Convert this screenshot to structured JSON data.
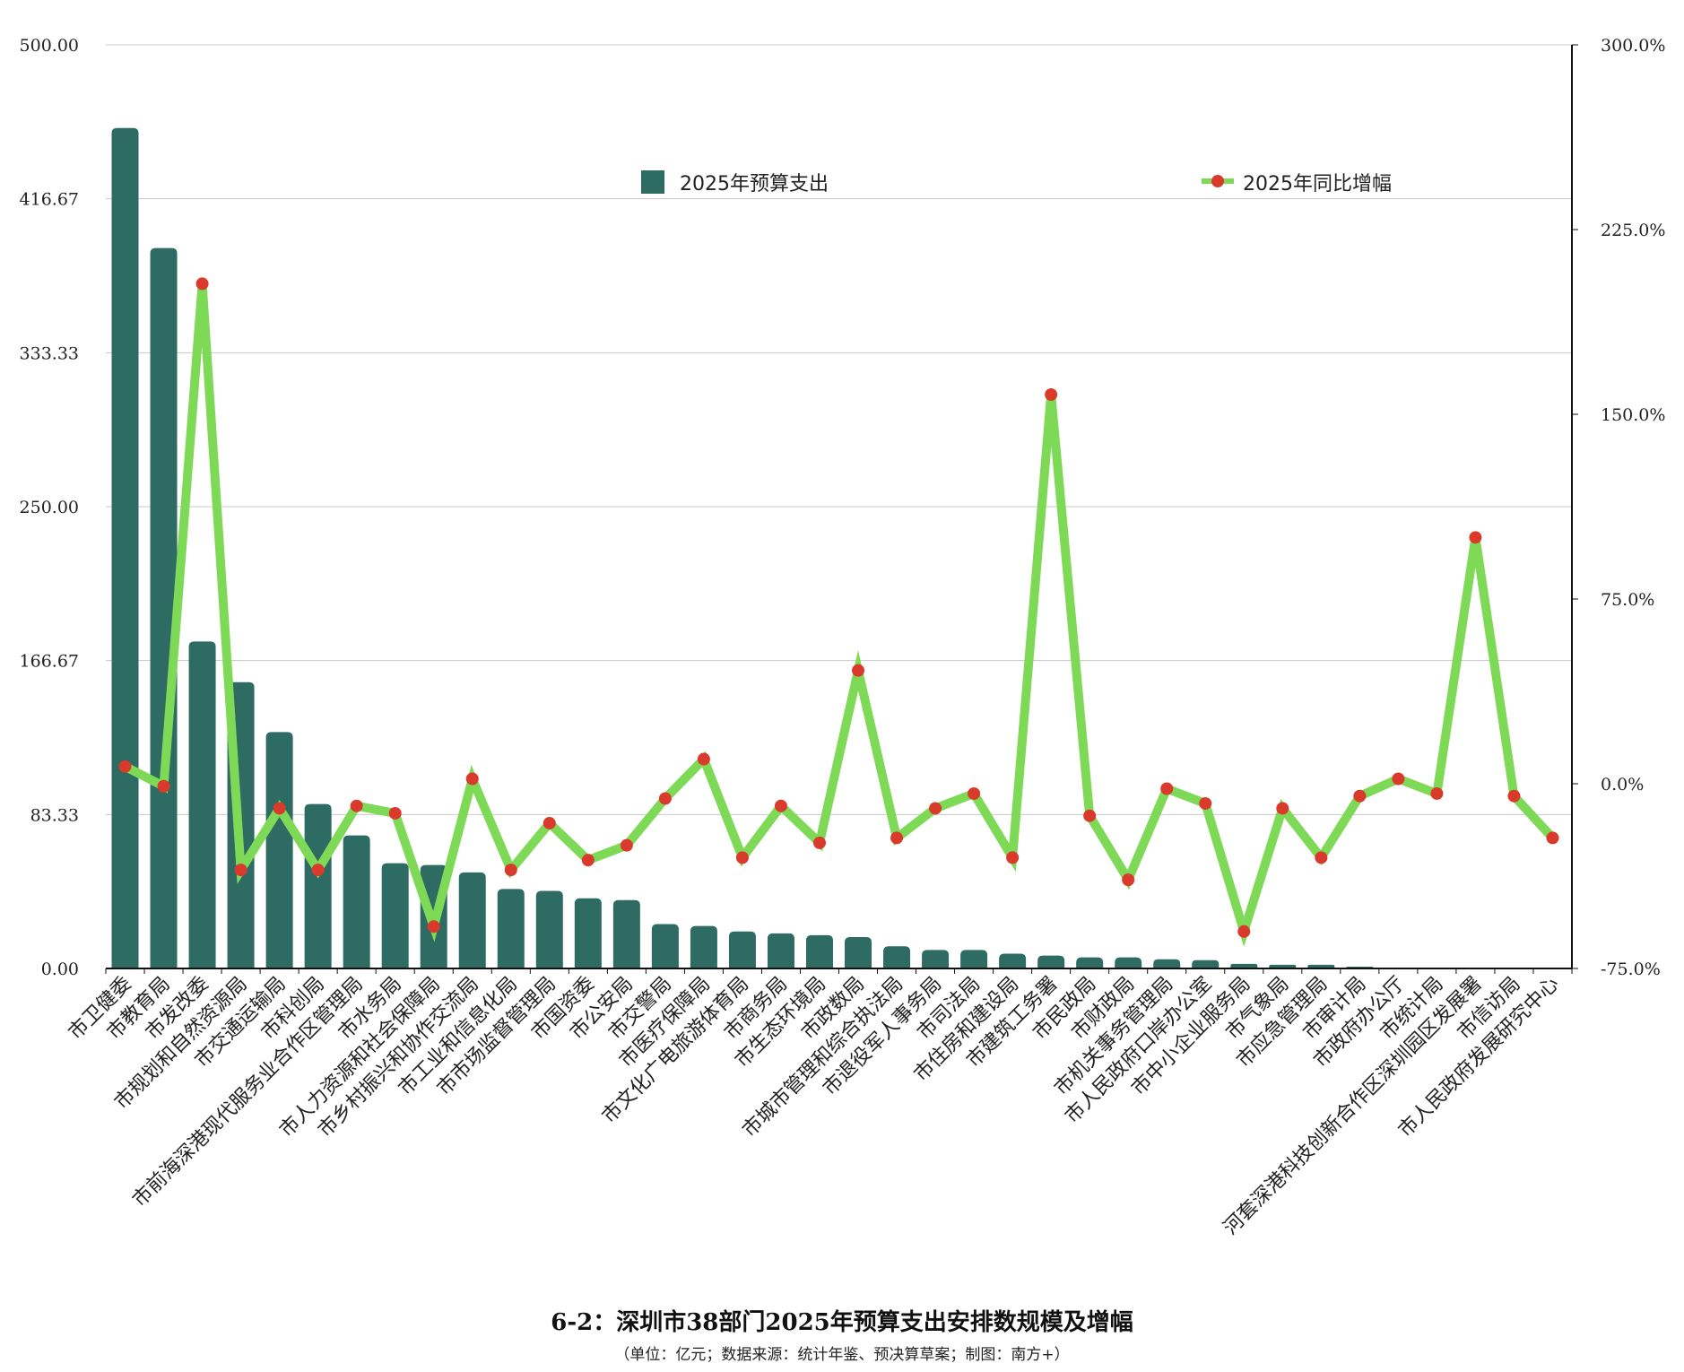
{
  "chart_data": {
    "type": "bar",
    "title": "6-2：深圳市38部门2025年预算支出安排数规模及增幅",
    "subtitle": "（单位：亿元；数据来源：统计年鉴、预决算草案；制图：南方+）",
    "categories": [
      "市卫健委",
      "市教育局",
      "市发改委",
      "市规划和自然资源局",
      "市交通运输局",
      "市科创局",
      "市前海深港现代服务业合作区管理局",
      "市水务局",
      "市人力资源和社会保障局",
      "市乡村振兴和协作交流局",
      "市工业和信息化局",
      "市市场监督管理局",
      "市国资委",
      "市公安局",
      "市交警局",
      "市医疗保障局",
      "市文化广电旅游体育局",
      "市商务局",
      "市生态环境局",
      "市政数局",
      "市城市管理和综合执法局",
      "市退役军人事务局",
      "市司法局",
      "市住房和建设局",
      "市建筑工务署",
      "市民政局",
      "市财政局",
      "市机关事务管理局",
      "市人民政府口岸办公室",
      "市中小企业服务局",
      "市气象局",
      "市应急管理局",
      "市审计局",
      "市政府办公厅",
      "市统计局",
      "河套深港科技创新合作区深圳园区发展署",
      "市信访局",
      "市人民政府发展研究中心"
    ],
    "series": [
      {
        "name": "2025年预算支出",
        "type": "bar",
        "axis": "left",
        "color": "#2e6b63",
        "values": [
          455,
          390,
          177,
          155,
          128,
          89,
          72,
          57,
          56,
          52,
          43,
          42,
          38,
          37,
          24,
          23,
          20,
          19,
          18,
          17,
          12,
          10,
          10,
          8,
          7,
          6,
          6,
          5,
          4.5,
          2.5,
          2,
          2,
          1,
          0,
          0,
          0,
          0,
          0
        ]
      },
      {
        "name": "2025年同比增幅",
        "type": "line",
        "axis": "right",
        "color": "#7ed957",
        "marker_color": "#d93a2b",
        "values": [
          7,
          -1,
          203,
          -35,
          -10,
          -35,
          -9,
          -12,
          -58,
          2,
          -35,
          -16,
          -31,
          -25,
          -6,
          10,
          -30,
          -9,
          -24,
          46,
          -22,
          -10,
          -4,
          -30,
          158,
          -13,
          -39,
          -2,
          -8,
          -60,
          -10,
          -30,
          -5,
          2,
          -4,
          100,
          -5,
          -22
        ]
      }
    ],
    "y_left": {
      "min": 0,
      "max": 500,
      "ticks": [
        "0.00",
        "83.33",
        "166.67",
        "250.00",
        "333.33",
        "416.67",
        "500.00"
      ]
    },
    "y_right": {
      "min": -75,
      "max": 300,
      "ticks": [
        "-75.0%",
        "0.0%",
        "75.0%",
        "150.0%",
        "225.0%",
        "300.0%"
      ]
    },
    "grid": true,
    "legend_position": "top"
  }
}
